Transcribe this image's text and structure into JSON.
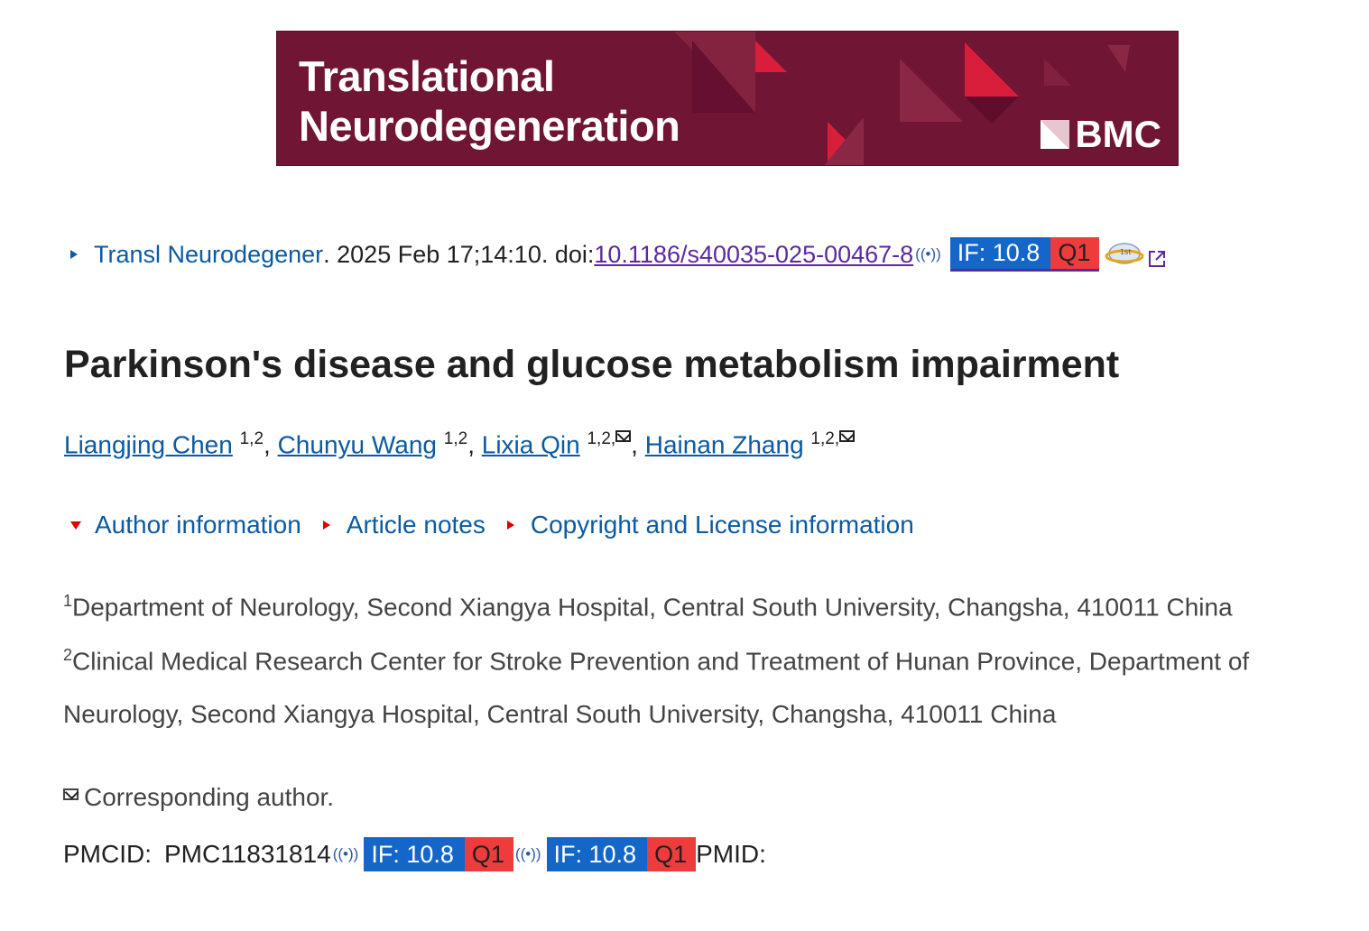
{
  "banner": {
    "journal_line1": "Translational",
    "journal_line2": "Neurodegeneration",
    "publisher": "BMC"
  },
  "citation": {
    "journal": "Transl Neurodegener",
    "details": ". 2025 Feb 17;14:10. doi: ",
    "doi": "10.1186/s40035-025-00467-8",
    "impact_factor": "IF: 10.8",
    "quartile": "Q1"
  },
  "article": {
    "title": "Parkinson's disease and glucose metabolism impairment"
  },
  "authors": [
    {
      "name": "Liangjing Chen",
      "aff": "1,2"
    },
    {
      "name": "Chunyu Wang",
      "aff": "1,2"
    },
    {
      "name": "Lixia Qin",
      "aff": "1,2,"
    },
    {
      "name": "Hainan Zhang",
      "aff": "1,2,"
    }
  ],
  "toggles": {
    "author_info": "Author information",
    "article_notes": "Article notes",
    "copyright": "Copyright and License information"
  },
  "affiliations": [
    {
      "num": "1",
      "text": "Department of Neurology, Second Xiangya Hospital, Central South University, Changsha, 410011 China"
    },
    {
      "num": "2",
      "text_line1": "Clinical Medical Research Center for Stroke Prevention and Treatment of Hunan Province, Department of",
      "text_line2": "Neurology, Second Xiangya Hospital, Central South University, Changsha, 410011 China"
    }
  ],
  "corresponding": "Corresponding author.",
  "ids": {
    "pmcid_label": "PMCID:",
    "pmcid": "PMC11831814",
    "pmid_label": "PMID:",
    "badge1_if": "IF: 10.8",
    "badge1_q": "Q1",
    "badge2_if": "IF: 10.8",
    "badge2_q": "Q1"
  },
  "icons": [
    "broadcast-icon",
    "mail-icon",
    "external-link-icon",
    "scholar-globe-icon"
  ],
  "colors": {
    "banner_bg": "#701533",
    "link": "#0b5aa2",
    "if_badge": "#1467c9",
    "q_badge": "#ee3b3b",
    "toggle_arrow": "#e00000"
  }
}
